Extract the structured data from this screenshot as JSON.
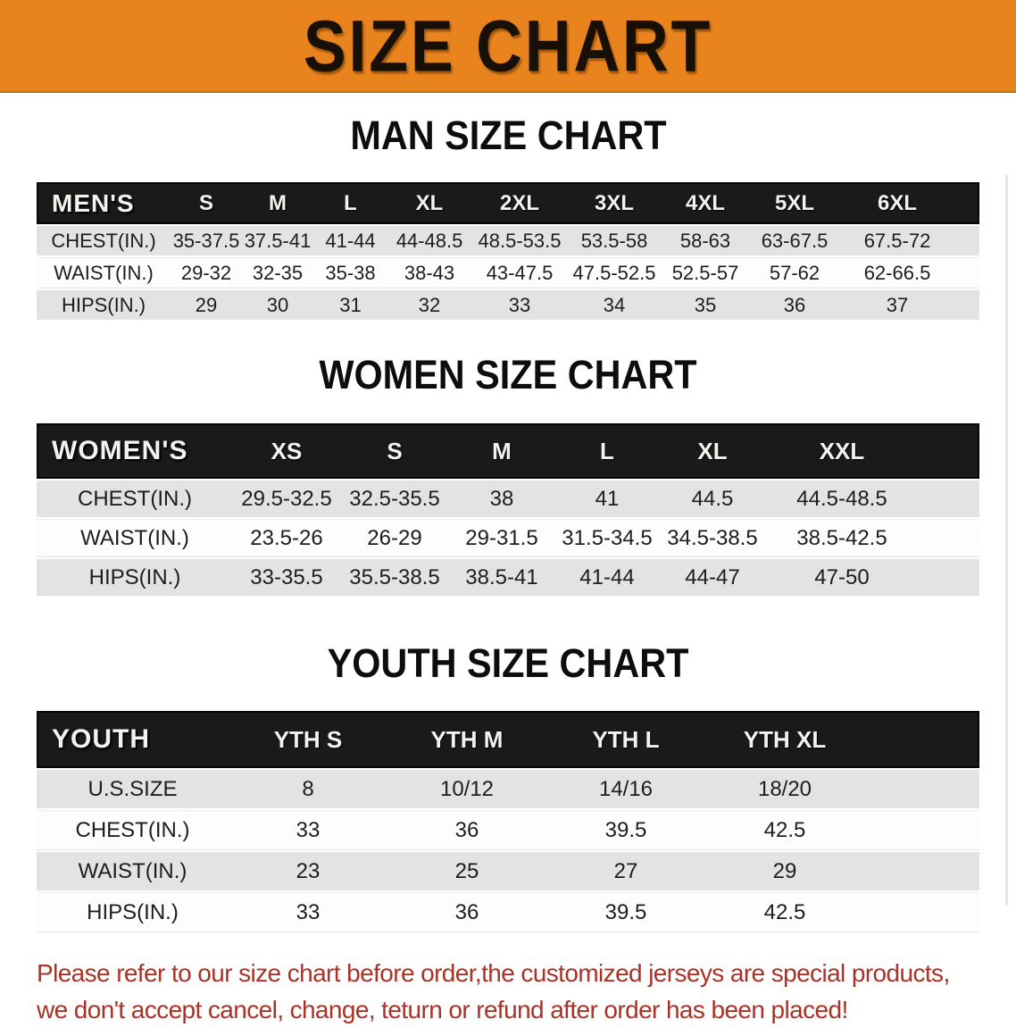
{
  "banner": {
    "title": "SIZE CHART",
    "bg_color": "#E8831D",
    "text_color": "#181006"
  },
  "colors": {
    "table_header_bg": "#1A1A1A",
    "row_gray": "#E3E3E6",
    "row_white": "#FDFDFD",
    "footer_text": "#A93327"
  },
  "sections": [
    {
      "heading": "MAN SIZE CHART",
      "table": {
        "header_label": "MEN'S",
        "columns": [
          "S",
          "M",
          "L",
          "XL",
          "2XL",
          "3XL",
          "4XL",
          "5XL",
          "6XL"
        ],
        "rows": [
          {
            "label": "CHEST(IN.)",
            "values": [
              "35-37.5",
              "37.5-41",
              "41-44",
              "44-48.5",
              "48.5-53.5",
              "53.5-58",
              "58-63",
              "63-67.5",
              "67.5-72"
            ]
          },
          {
            "label": "WAIST(IN.)",
            "values": [
              "29-32",
              "32-35",
              "35-38",
              "38-43",
              "43-47.5",
              "47.5-52.5",
              "52.5-57",
              "57-62",
              "62-66.5"
            ]
          },
          {
            "label": "HIPS(IN.)",
            "values": [
              "29",
              "30",
              "31",
              "32",
              "33",
              "34",
              "35",
              "36",
              "37"
            ]
          }
        ]
      }
    },
    {
      "heading": "WOMEN SIZE CHART",
      "table": {
        "header_label": "WOMEN'S",
        "columns": [
          "XS",
          "S",
          "M",
          "L",
          "XL",
          "XXL"
        ],
        "rows": [
          {
            "label": "CHEST(IN.)",
            "values": [
              "29.5-32.5",
              "32.5-35.5",
              "38",
              "41",
              "44.5",
              "44.5-48.5"
            ]
          },
          {
            "label": "WAIST(IN.)",
            "values": [
              "23.5-26",
              "26-29",
              "29-31.5",
              "31.5-34.5",
              "34.5-38.5",
              "38.5-42.5"
            ]
          },
          {
            "label": "HIPS(IN.)",
            "values": [
              "33-35.5",
              "35.5-38.5",
              "38.5-41",
              "41-44",
              "44-47",
              "47-50"
            ]
          }
        ]
      }
    },
    {
      "heading": "YOUTH SIZE CHART",
      "table": {
        "header_label": "YOUTH",
        "columns": [
          "YTH S",
          "YTH M",
          "YTH L",
          "YTH XL"
        ],
        "rows": [
          {
            "label": "U.S.SIZE",
            "values": [
              "8",
              "10/12",
              "14/16",
              "18/20"
            ]
          },
          {
            "label": "CHEST(IN.)",
            "values": [
              "33",
              "36",
              "39.5",
              "42.5"
            ]
          },
          {
            "label": "WAIST(IN.)",
            "values": [
              "23",
              "25",
              "27",
              "29"
            ]
          },
          {
            "label": "HIPS(IN.)",
            "values": [
              "33",
              "36",
              "39.5",
              "42.5"
            ]
          }
        ]
      }
    }
  ],
  "footer": {
    "line1": "Please refer to our size chart before order,the customized jerseys are special products,",
    "line2": "we don't accept cancel, change, teturn or refund after order has been placed!"
  }
}
